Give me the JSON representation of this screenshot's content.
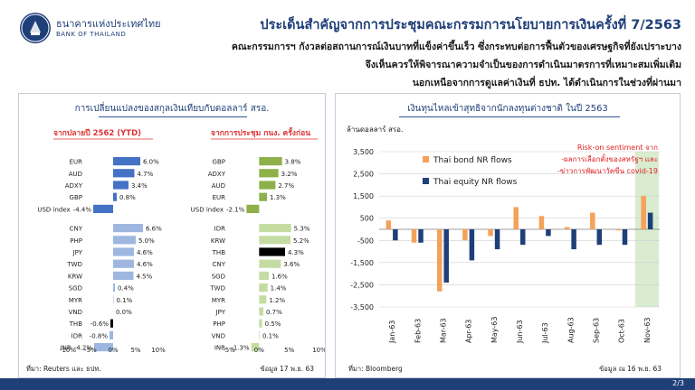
{
  "header": {
    "bank_name_th": "ธนาคารแห่งประเทศไทย",
    "bank_name_en": "BANK OF THAILAND",
    "title": "ประเด็นสำคัญจากการประชุมคณะกรรมการนโยบายการเงินครั้งที่ 7/2563",
    "subtitle_lines": [
      "คณะกรรมการฯ กังวลต่อสถานการณ์เงินบาทที่แข็งค่าขึ้นเร็ว ซึ่งกระทบต่อการฟื้นตัวของเศรษฐกิจที่ยังเปราะบาง",
      "จึงเห็นควรให้พิจารณาความจำเป็นของการดำเนินมาตรการที่เหมาะสมเพิ่มเติม",
      "นอกเหนือจากการดูแลค่าเงินที่ ธปท. ได้ดำเนินการในช่วงที่ผ่านมา"
    ]
  },
  "left_panel": {
    "title": "การเปลี่ยนแปลงของสกุลเงินเทียบกับดอลลาร์ สรอ.",
    "source": "ที่มา: Reuters และ ธปท.",
    "date": "ข้อมูล 17 พ.ย. 63"
  },
  "right_panel": {
    "title": "เงินทุนไหลเข้าสุทธิจากนักลงทุนต่างชาติ ในปี 2563",
    "source": "ที่มา: Bloomberg",
    "date": "ข้อมูล ณ 16 พ.ย. 63"
  },
  "footer": {
    "page": "2/3"
  },
  "colors": {
    "brand": "#1f3f78",
    "bar_blue_dark": "#4472c4",
    "bar_blue_light": "#9db7e0",
    "bar_green_dark": "#8db04a",
    "bar_green_light": "#c4dca2",
    "bar_black": "#000000",
    "bond_orange": "#f4a259",
    "equity_navy": "#1f3f78",
    "highlight_green": "#d9ecd0",
    "annotation_red": "#e02020"
  },
  "chart_data": [
    {
      "type": "bar",
      "orientation": "horizontal",
      "title": "จากปลายปี 2562 (YTD)",
      "categories": [
        "EUR",
        "AUD",
        "ADXY",
        "GBP",
        "USD index",
        "CNY",
        "PHP",
        "JPY",
        "TWD",
        "KRW",
        "SGD",
        "MYR",
        "VND",
        "THB",
        "IDR",
        "INR"
      ],
      "values": [
        6.0,
        4.7,
        3.4,
        0.8,
        -4.4,
        6.6,
        5.0,
        4.6,
        4.6,
        4.5,
        0.4,
        0.1,
        0.0,
        -0.6,
        -0.8,
        -4.2
      ],
      "value_labels": [
        "6.0%",
        "4.7%",
        "3.4%",
        "0.8%",
        "-4.4%",
        "6.6%",
        "5.0%",
        "4.6%",
        "4.6%",
        "4.5%",
        "0.4%",
        "0.1%",
        "0.0%",
        "-0.6%",
        "-0.8%",
        "-4.2%"
      ],
      "xlim": [
        -10,
        10
      ],
      "x_ticks": [
        "-10%",
        "-5%",
        "0%",
        "5%",
        "10%"
      ]
    },
    {
      "type": "bar",
      "orientation": "horizontal",
      "title": "จากการประชุม กนง. ครั้งก่อน",
      "categories": [
        "GBP",
        "ADXY",
        "AUD",
        "EUR",
        "USD index",
        "IDR",
        "KRW",
        "THB",
        "CNY",
        "SGD",
        "TWD",
        "MYR",
        "JPY",
        "PHP",
        "VND",
        "INR"
      ],
      "values": [
        3.8,
        3.2,
        2.7,
        1.3,
        -2.1,
        5.3,
        5.2,
        4.3,
        3.6,
        1.6,
        1.4,
        1.2,
        0.7,
        0.5,
        0.1,
        -1.3
      ],
      "value_labels": [
        "3.8%",
        "3.2%",
        "2.7%",
        "1.3%",
        "-2.1%",
        "5.3%",
        "5.2%",
        "4.3%",
        "3.6%",
        "1.6%",
        "1.4%",
        "1.2%",
        "0.7%",
        "0.5%",
        "0.1%",
        "-1.3%"
      ],
      "xlim": [
        -5,
        10
      ],
      "x_ticks": [
        "-5%",
        "0%",
        "5%",
        "10%"
      ]
    },
    {
      "type": "bar",
      "ylabel": "ล้านดอลลาร์ สรอ.",
      "categories": [
        "Jan-63",
        "Feb-63",
        "Mar-63",
        "Apr-63",
        "May-63",
        "Jun-63",
        "Jul-63",
        "Aug-63",
        "Sep-63",
        "Oct-63",
        "Nov-63"
      ],
      "series": [
        {
          "name": "Thai bond NR flows",
          "values": [
            400,
            -600,
            -2800,
            -500,
            -300,
            1000,
            600,
            100,
            750,
            -50,
            1500
          ]
        },
        {
          "name": "Thai equity NR flows",
          "values": [
            -500,
            -600,
            -2400,
            -1400,
            -900,
            -700,
            -300,
            -900,
            -700,
            -700,
            750
          ]
        }
      ],
      "ylim": [
        -3500,
        3500
      ],
      "y_ticks": [
        "3,500",
        "2,500",
        "1,500",
        "500",
        "-500",
        "-1,500",
        "-2,500",
        "-3,500"
      ],
      "annotation": [
        "Risk-on sentiment จาก",
        "-ผลการเลือกตั้งของสหรัฐฯ และ",
        "-ข่าวการพัฒนาวัคซีน covid-19"
      ]
    }
  ]
}
